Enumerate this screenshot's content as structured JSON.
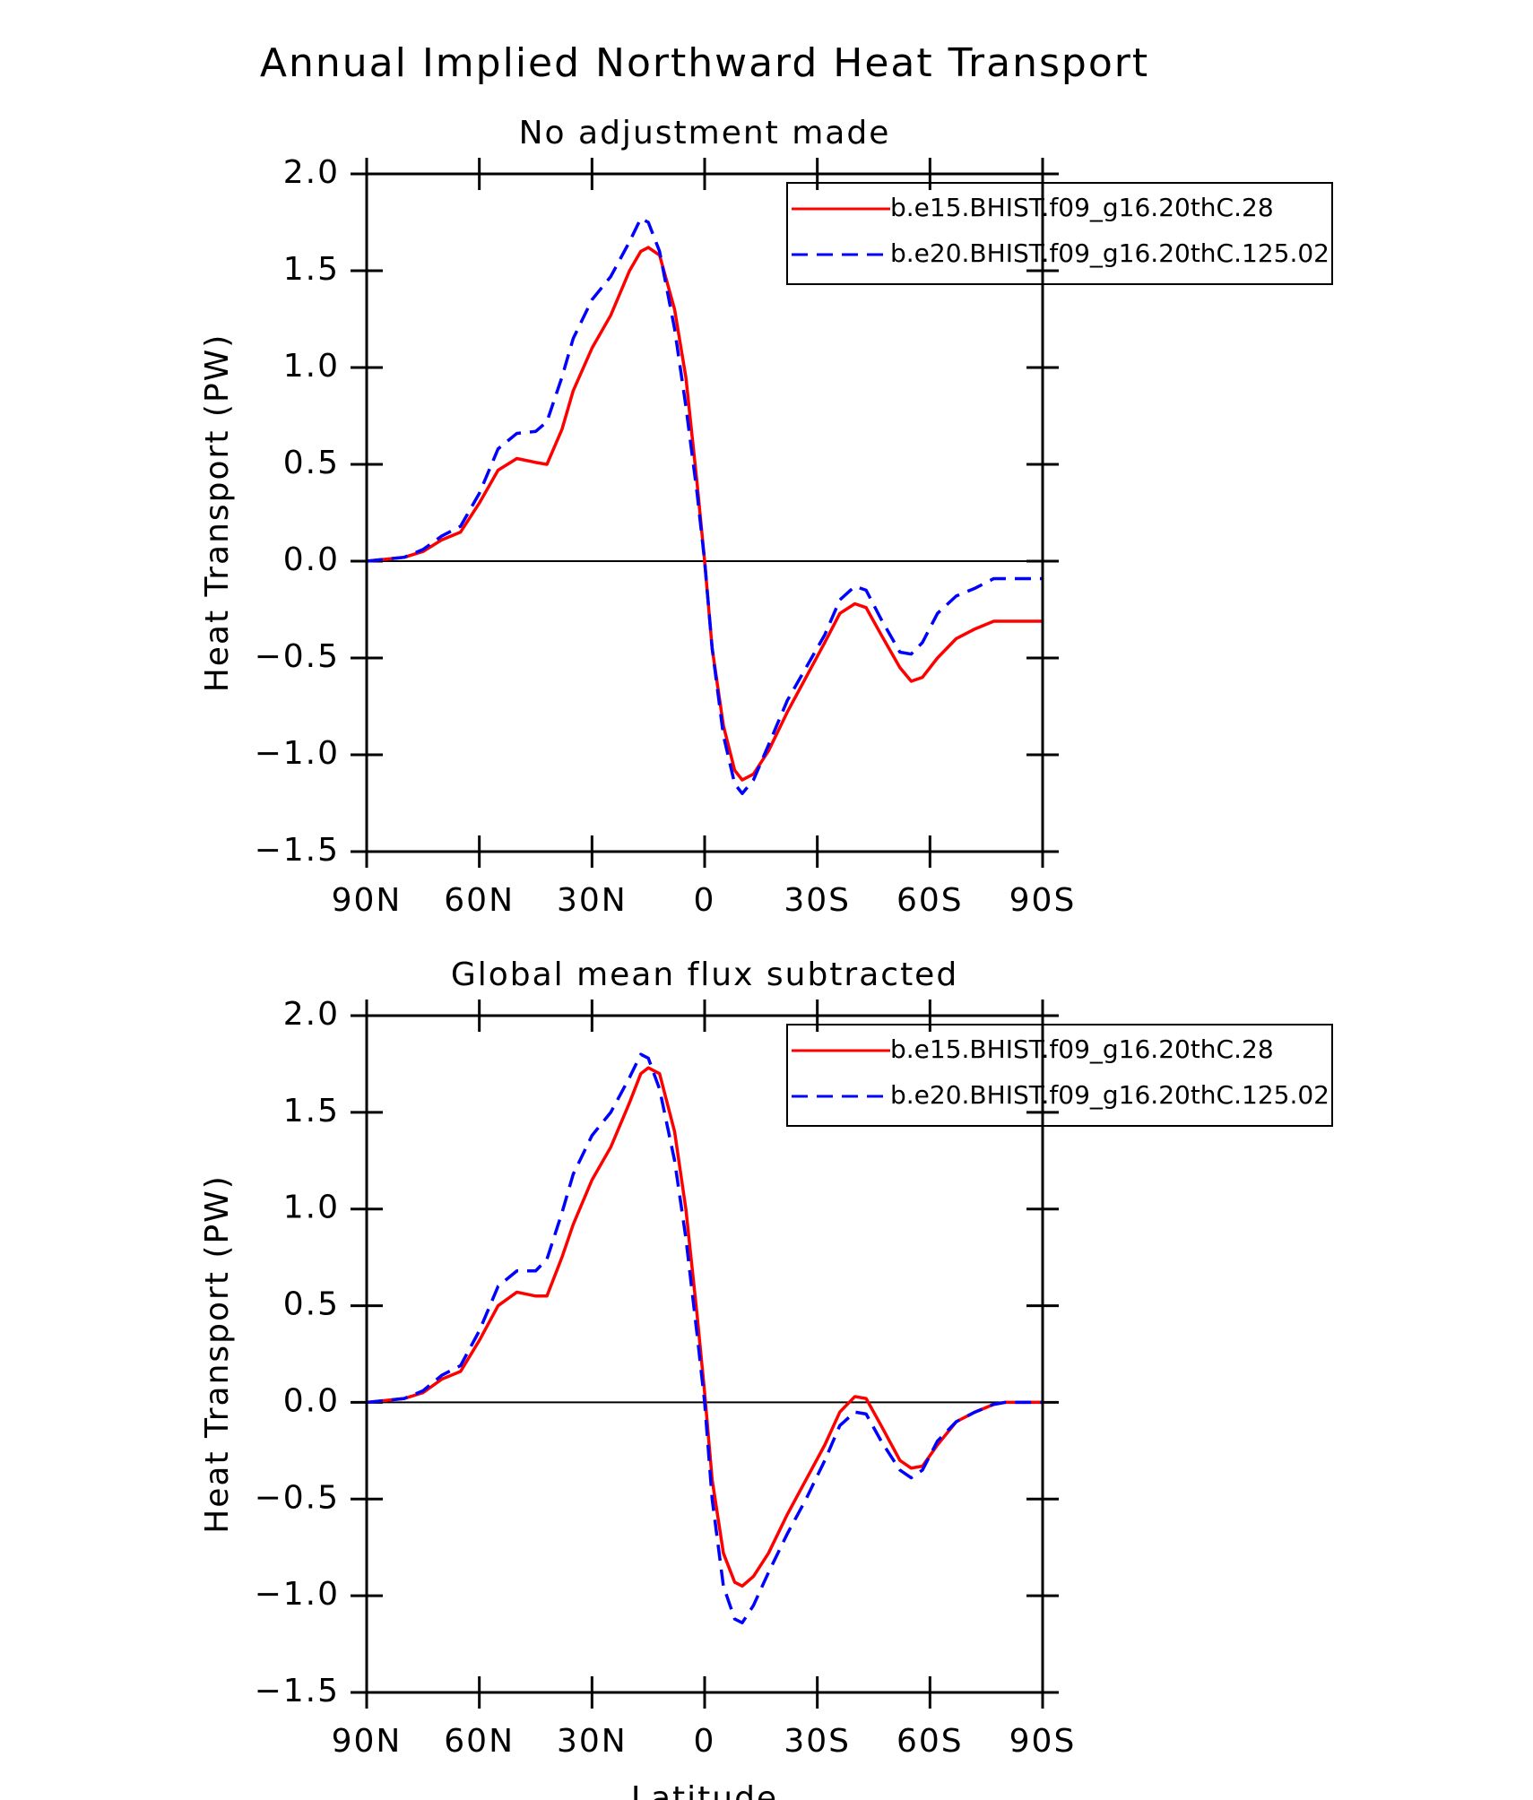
{
  "title": "Annual Implied Northward Heat Transport",
  "chart_data": [
    {
      "type": "line",
      "title": "No adjustment made",
      "ylabel": "Heat Transport (PW)",
      "xlim": [
        90,
        -90
      ],
      "ylim": [
        -1.5,
        2.0
      ],
      "xticks": [
        {
          "value": 90,
          "label": "90N"
        },
        {
          "value": 60,
          "label": "60N"
        },
        {
          "value": 30,
          "label": "30N"
        },
        0,
        {
          "value": -30,
          "label": "30S"
        },
        {
          "value": -60,
          "label": "60S"
        },
        {
          "value": -90,
          "label": "90S"
        }
      ],
      "yticks": [
        {
          "value": -1.5,
          "label": "−1.5"
        },
        {
          "value": -1,
          "label": "−1.0"
        },
        {
          "value": -0.5,
          "label": "−0.5"
        },
        {
          "value": 0,
          "label": "0.0"
        },
        {
          "value": 0.5,
          "label": "0.5"
        },
        {
          "value": 1,
          "label": "1.0"
        },
        {
          "value": 1.5,
          "label": "1.5"
        },
        {
          "value": 2,
          "label": "2.0"
        }
      ],
      "hline": 0,
      "legend": "upper right",
      "x": [
        90,
        80,
        75,
        70,
        65,
        60,
        55,
        50,
        45,
        42,
        38,
        35,
        30,
        25,
        20,
        17,
        15,
        12,
        8,
        5,
        2,
        0,
        -2,
        -5,
        -8,
        -10,
        -13,
        -17,
        -22,
        -27,
        -32,
        -36,
        -40,
        -43,
        -47,
        -52,
        -55,
        -58,
        -62,
        -67,
        -72,
        -77,
        -80,
        -90
      ],
      "series": [
        {
          "name": "b.e15.BHIST.f09_g16.20thC.28",
          "color": "#ff0000",
          "line_style": "solid",
          "values": [
            0,
            0.02,
            0.05,
            0.11,
            0.15,
            0.3,
            0.47,
            0.53,
            0.51,
            0.5,
            0.68,
            0.88,
            1.1,
            1.27,
            1.5,
            1.6,
            1.62,
            1.58,
            1.3,
            0.95,
            0.4,
            0,
            -0.45,
            -0.85,
            -1.08,
            -1.13,
            -1.1,
            -0.98,
            -0.78,
            -0.6,
            -0.42,
            -0.27,
            -0.22,
            -0.24,
            -0.38,
            -0.55,
            -0.62,
            -0.6,
            -0.5,
            -0.4,
            -0.35,
            -0.31,
            -0.31,
            -0.31
          ]
        },
        {
          "name": "b.e20.BHIST.f09_g16.20thC.125.02",
          "color": "#0000ff",
          "line_style": "dashed",
          "values": [
            0,
            0.02,
            0.06,
            0.13,
            0.18,
            0.35,
            0.58,
            0.66,
            0.67,
            0.72,
            0.95,
            1.15,
            1.35,
            1.47,
            1.65,
            1.77,
            1.75,
            1.6,
            1.2,
            0.8,
            0.35,
            0,
            -0.45,
            -0.9,
            -1.15,
            -1.2,
            -1.13,
            -0.95,
            -0.72,
            -0.55,
            -0.38,
            -0.2,
            -0.13,
            -0.15,
            -0.3,
            -0.47,
            -0.48,
            -0.42,
            -0.27,
            -0.18,
            -0.14,
            -0.09,
            -0.09,
            -0.09
          ]
        }
      ]
    },
    {
      "type": "line",
      "title": "Global mean flux subtracted",
      "ylabel": "Heat Transport (PW)",
      "xlabel": "Latitude",
      "xlim": [
        90,
        -90
      ],
      "ylim": [
        -1.5,
        2.0
      ],
      "xticks": [
        {
          "value": 90,
          "label": "90N"
        },
        {
          "value": 60,
          "label": "60N"
        },
        {
          "value": 30,
          "label": "30N"
        },
        0,
        {
          "value": -30,
          "label": "30S"
        },
        {
          "value": -60,
          "label": "60S"
        },
        {
          "value": -90,
          "label": "90S"
        }
      ],
      "yticks": [
        {
          "value": -1.5,
          "label": "−1.5"
        },
        {
          "value": -1,
          "label": "−1.0"
        },
        {
          "value": -0.5,
          "label": "−0.5"
        },
        {
          "value": 0,
          "label": "0.0"
        },
        {
          "value": 0.5,
          "label": "0.5"
        },
        {
          "value": 1,
          "label": "1.0"
        },
        {
          "value": 1.5,
          "label": "1.5"
        },
        {
          "value": 2,
          "label": "2.0"
        }
      ],
      "hline": 0,
      "legend": "upper right",
      "x": [
        90,
        80,
        75,
        70,
        65,
        60,
        55,
        50,
        45,
        42,
        38,
        35,
        30,
        25,
        20,
        17,
        15,
        12,
        8,
        5,
        2,
        0,
        -2,
        -5,
        -8,
        -10,
        -13,
        -17,
        -22,
        -27,
        -32,
        -36,
        -40,
        -43,
        -47,
        -52,
        -55,
        -58,
        -62,
        -67,
        -72,
        -77,
        -80,
        -90
      ],
      "series": [
        {
          "name": "b.e15.BHIST.f09_g16.20thC.28",
          "color": "#ff0000",
          "line_style": "solid",
          "values": [
            0,
            0.02,
            0.05,
            0.12,
            0.16,
            0.32,
            0.5,
            0.57,
            0.55,
            0.55,
            0.75,
            0.92,
            1.15,
            1.32,
            1.55,
            1.7,
            1.73,
            1.7,
            1.4,
            1.0,
            0.45,
            0.05,
            -0.4,
            -0.78,
            -0.93,
            -0.95,
            -0.9,
            -0.78,
            -0.58,
            -0.4,
            -0.22,
            -0.05,
            0.03,
            0.02,
            -0.12,
            -0.3,
            -0.34,
            -0.33,
            -0.22,
            -0.1,
            -0.05,
            -0.01,
            0,
            0
          ]
        },
        {
          "name": "b.e20.BHIST.f09_g16.20thC.125.02",
          "color": "#0000ff",
          "line_style": "dashed",
          "values": [
            0,
            0.02,
            0.06,
            0.14,
            0.19,
            0.37,
            0.6,
            0.68,
            0.68,
            0.74,
            0.98,
            1.18,
            1.38,
            1.5,
            1.68,
            1.8,
            1.78,
            1.62,
            1.25,
            0.85,
            0.35,
            0,
            -0.5,
            -0.95,
            -1.12,
            -1.14,
            -1.05,
            -0.88,
            -0.68,
            -0.5,
            -0.3,
            -0.12,
            -0.05,
            -0.06,
            -0.2,
            -0.35,
            -0.39,
            -0.35,
            -0.2,
            -0.1,
            -0.05,
            -0.01,
            0,
            0
          ]
        }
      ]
    }
  ]
}
